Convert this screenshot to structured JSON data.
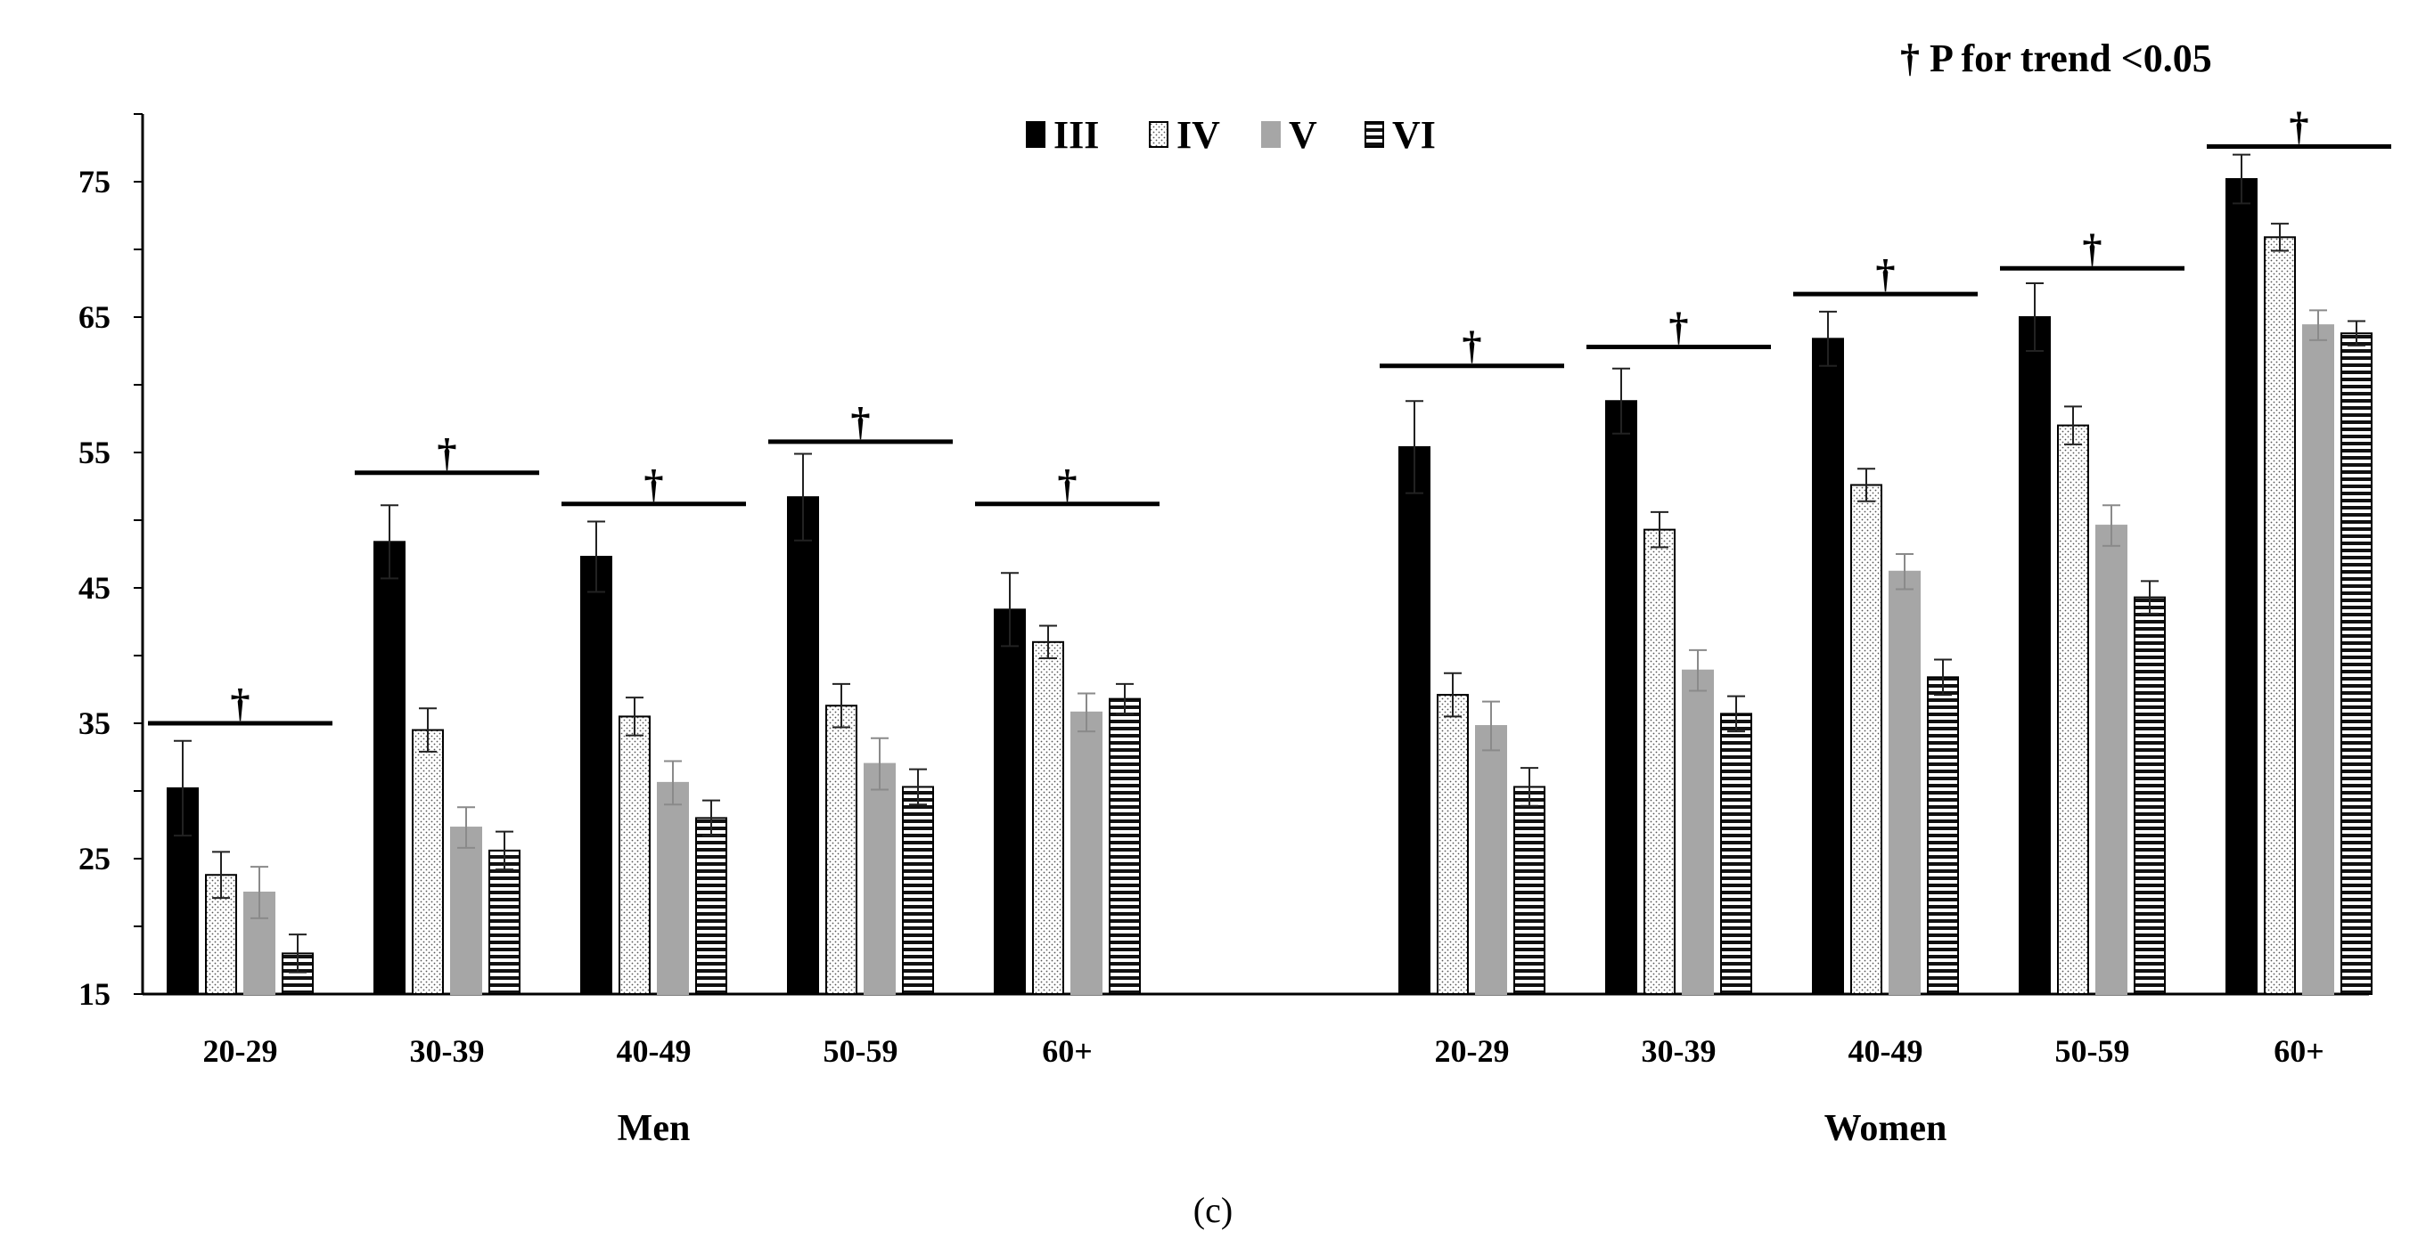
{
  "chart_data": {
    "type": "bar",
    "note": "† P for trend <0.05",
    "caption": "(c)",
    "ylim": [
      15,
      80
    ],
    "yticks": [
      15,
      25,
      35,
      45,
      55,
      65,
      75
    ],
    "categories": [
      "20-29",
      "30-39",
      "40-49",
      "50-59",
      "60+",
      "20-29",
      "30-39",
      "40-49",
      "50-59",
      "60+"
    ],
    "groups": [
      {
        "label": "Men",
        "category_indices": [
          0,
          1,
          2,
          3,
          4
        ]
      },
      {
        "label": "Women",
        "category_indices": [
          5,
          6,
          7,
          8,
          9
        ]
      }
    ],
    "series": [
      {
        "name": "III",
        "style": "solid-black",
        "values": [
          30.2,
          48.4,
          47.3,
          51.7,
          43.4,
          55.4,
          58.8,
          63.4,
          65.0,
          75.2
        ],
        "errors": [
          3.5,
          2.7,
          2.6,
          3.2,
          2.7,
          3.4,
          2.4,
          2.0,
          2.5,
          1.8
        ]
      },
      {
        "name": "IV",
        "style": "dotted",
        "values": [
          23.8,
          34.5,
          35.5,
          36.3,
          41.0,
          37.1,
          49.3,
          52.6,
          57.0,
          70.9
        ],
        "errors": [
          1.7,
          1.6,
          1.4,
          1.6,
          1.2,
          1.6,
          1.3,
          1.2,
          1.4,
          1.0
        ]
      },
      {
        "name": "V",
        "style": "solid-gray",
        "values": [
          22.5,
          27.3,
          30.6,
          32.0,
          35.8,
          34.8,
          38.9,
          46.2,
          49.6,
          64.4
        ],
        "errors": [
          1.9,
          1.5,
          1.6,
          1.9,
          1.4,
          1.8,
          1.5,
          1.3,
          1.5,
          1.1
        ]
      },
      {
        "name": "VI",
        "style": "horizontal-stripes",
        "values": [
          18.0,
          25.6,
          28.0,
          30.3,
          36.8,
          30.3,
          35.7,
          38.4,
          44.3,
          63.8
        ],
        "errors": [
          1.4,
          1.4,
          1.3,
          1.3,
          1.1,
          1.4,
          1.3,
          1.3,
          1.2,
          0.9
        ]
      }
    ],
    "trend_markers": [
      {
        "category_index": 0,
        "value": 35.0
      },
      {
        "category_index": 1,
        "value": 53.5
      },
      {
        "category_index": 2,
        "value": 51.2
      },
      {
        "category_index": 3,
        "value": 55.8
      },
      {
        "category_index": 4,
        "value": 51.2
      },
      {
        "category_index": 5,
        "value": 61.4
      },
      {
        "category_index": 6,
        "value": 62.8
      },
      {
        "category_index": 7,
        "value": 66.7
      },
      {
        "category_index": 8,
        "value": 68.6
      },
      {
        "category_index": 9,
        "value": 77.6
      }
    ],
    "marker_symbol": "†",
    "grid": false,
    "legend_position": "top-center"
  }
}
